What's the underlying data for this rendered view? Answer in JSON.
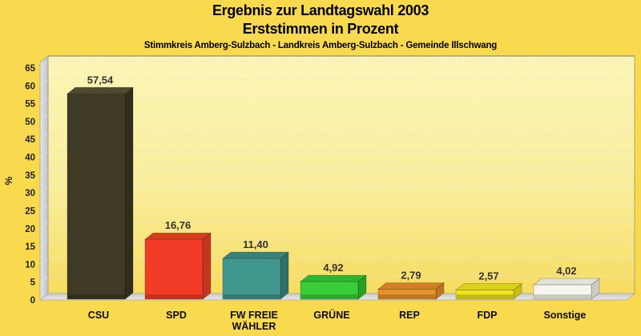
{
  "chart_data": {
    "type": "bar",
    "style": "3d-column",
    "title": "Ergebnis zur Landtagswahl 2003",
    "subtitle": "Erststimmen in Prozent",
    "caption": "Stimmkreis Amberg-Sulzbach - Landkreis Amberg-Sulzbach - Gemeinde Illschwang",
    "ylabel": "%",
    "ylim": [
      0,
      65
    ],
    "ytick_step": 5,
    "ytick_labels": [
      "0",
      "5",
      "10",
      "15",
      "20",
      "25",
      "30",
      "35",
      "40",
      "45",
      "50",
      "55",
      "60",
      "65"
    ],
    "grid": "dashed horizontal",
    "legend": "none",
    "categories": [
      "CSU",
      "SPD",
      "FW FREIE WÄHLER",
      "GRÜNE",
      "REP",
      "FDP",
      "Sonstige"
    ],
    "category_label_lines": [
      [
        "CSU"
      ],
      [
        "SPD"
      ],
      [
        "FW FREIE",
        "WÄHLER"
      ],
      [
        "GRÜNE"
      ],
      [
        "REP"
      ],
      [
        "FDP"
      ],
      [
        "Sonstige"
      ]
    ],
    "values": [
      57.54,
      16.76,
      11.4,
      4.92,
      2.79,
      2.57,
      4.02
    ],
    "value_labels": [
      "57,54",
      "16,76",
      "11,40",
      "4,92",
      "2,79",
      "2,57",
      "4,02"
    ],
    "colors": {
      "page_background": "#F9D94E",
      "plot_gradient": [
        "#FCF5B6",
        "#FAEE9C",
        "#F6DC60"
      ],
      "grid_line": "#E6E6D4",
      "wall_gray_light": "#E6E6E6",
      "wall_gray_dark": "#C2C2C2",
      "floor_gray_back": "#CBCBCB",
      "floor_gray_front": "#E6E6E6",
      "frame_line": "#A3A386",
      "text": "#1A1A1A",
      "bars": [
        {
          "name": "CSU",
          "front": "#3E3A25",
          "top": "#4E4930",
          "side": "#302D1C"
        },
        {
          "name": "SPD",
          "front": "#F13B27",
          "top": "#D63E1D",
          "side": "#C33722"
        },
        {
          "name": "FW FREIE WÄHLER",
          "front": "#41968E",
          "top": "#37837B",
          "side": "#2F7168"
        },
        {
          "name": "GRÜNE",
          "front": "#38CC38",
          "top": "#2FB42F",
          "side": "#27A027"
        },
        {
          "name": "REP",
          "front": "#E6932D",
          "top": "#D08026",
          "side": "#BC7520"
        },
        {
          "name": "FDP",
          "front": "#EFE51C",
          "top": "#DCD218",
          "side": "#C8BE12"
        },
        {
          "name": "Sonstige",
          "front": "#F6F6EE",
          "top": "#E2E2DA",
          "side": "#CBCBC3"
        }
      ]
    }
  }
}
